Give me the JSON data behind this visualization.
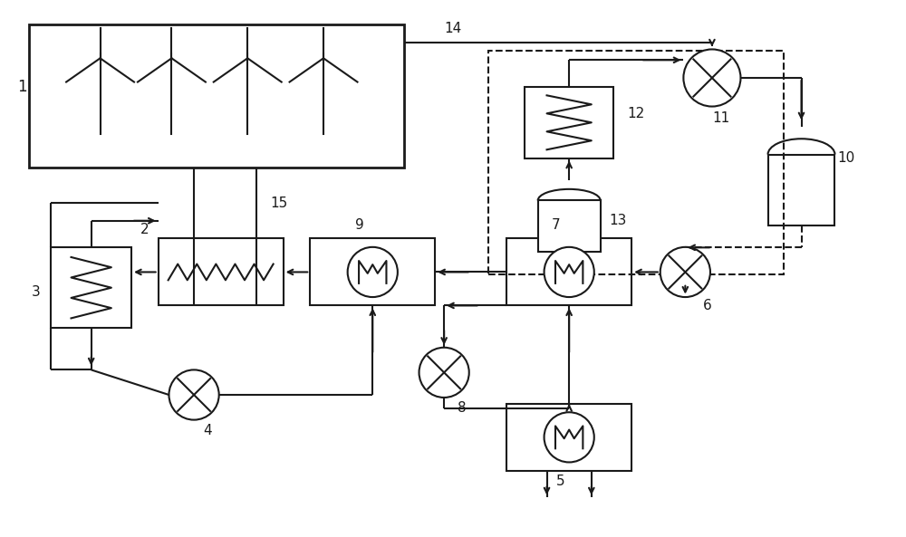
{
  "bg_color": "#ffffff",
  "line_color": "#1a1a1a",
  "fig_width": 10.0,
  "fig_height": 5.93,
  "dpi": 100
}
